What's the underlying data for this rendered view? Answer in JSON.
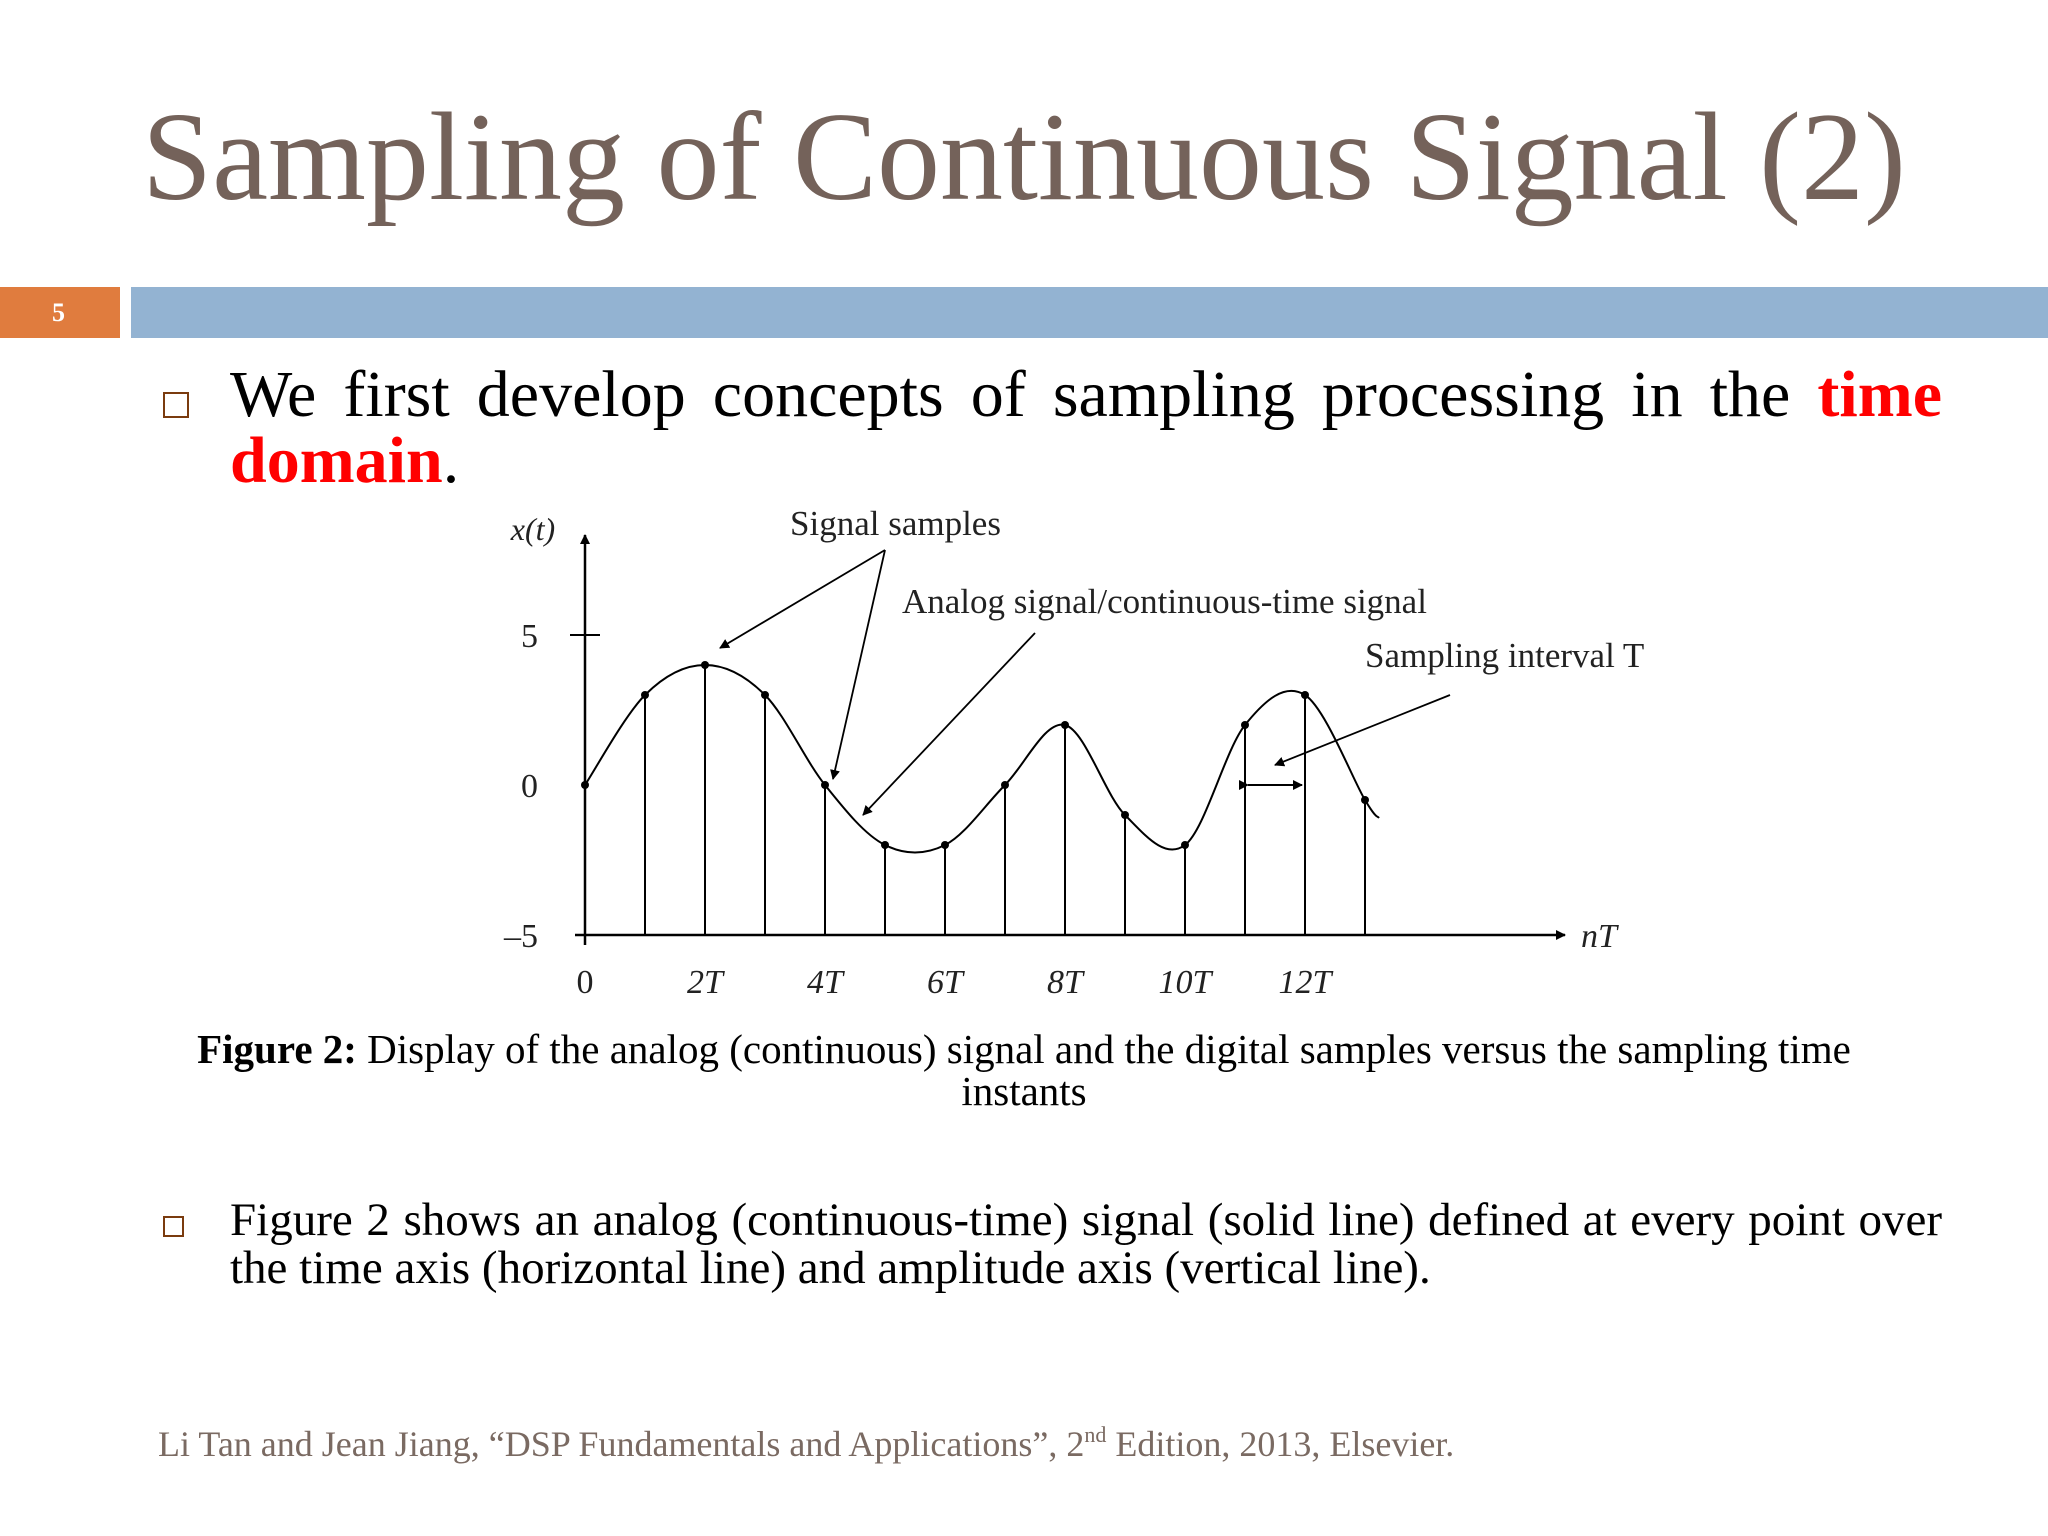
{
  "slide": {
    "title": "Sampling of Continuous Signal (2)",
    "number": "5",
    "colors": {
      "title": "#74625a",
      "accent_orange": "#e07c3e",
      "header_bar": "#93b3d2",
      "highlight": "#ff0000"
    }
  },
  "bullet1": {
    "text": "We first develop concepts of sampling processing in the ",
    "highlight": "time domain",
    "end": "."
  },
  "figure": {
    "y_axis_label": "x(t)",
    "x_axis_label": "nT",
    "y_ticks": [
      "5",
      "0",
      "–5"
    ],
    "x_ticks": [
      "0",
      "2T",
      "4T",
      "6T",
      "8T",
      "10T",
      "12T"
    ],
    "annotations": {
      "signal_samples": "Signal samples",
      "analog_signal": "Analog signal/continuous-time signal",
      "sampling_interval": "Sampling interval T"
    }
  },
  "chart_data": {
    "type": "scatter",
    "title": "",
    "xlabel": "nT",
    "ylabel": "x(t)",
    "x": [
      0,
      1,
      2,
      3,
      4,
      5,
      6,
      7,
      8,
      9,
      10,
      11,
      12,
      13
    ],
    "series": [
      {
        "name": "Signal samples",
        "values": [
          0,
          3,
          4,
          3,
          0,
          -2,
          -2,
          0,
          2,
          -1,
          -2,
          2,
          3,
          -0.5
        ]
      }
    ],
    "xlim": [
      0,
      16
    ],
    "ylim": [
      -5,
      5
    ],
    "continuous_signal": true
  },
  "caption": {
    "label": "Figure 2:",
    "text": " Display of the analog (continuous) signal and the digital samples versus the sampling time instants"
  },
  "bullet2": {
    "text": "Figure 2 shows an analog (continuous-time) signal (solid line) defined at every point over the time axis (horizontal line) and amplitude axis (vertical line)."
  },
  "reference": {
    "text": "Li Tan and Jean Jiang, “DSP Fundamentals and Applications”,  2",
    "sup": "nd",
    "after": " Edition, 2013, Elsevier."
  }
}
